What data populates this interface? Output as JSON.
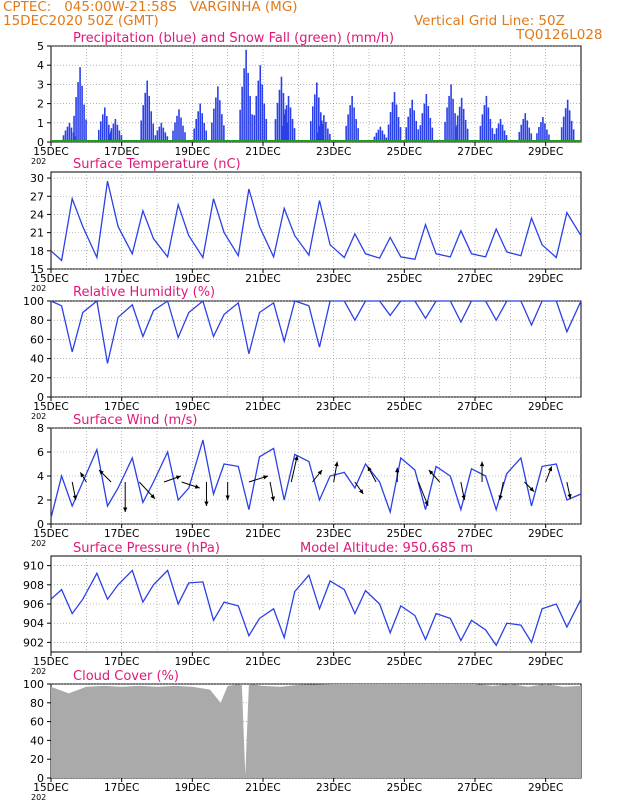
{
  "header": {
    "line1": "CPTEC:   045:00W-21:58S   VARGINHA (MG)",
    "line2": "15DEC2020 50Z (GMT)",
    "grid_note": "Vertical Grid Line: 50Z",
    "code": "TQ0126L028"
  },
  "colors": {
    "header": "#e07a1a",
    "title": "#e0187a",
    "series": "#2b40e8",
    "snow": "#1aa01a",
    "arrows": "#000000",
    "cloud": "#aaaaaa",
    "grid": "#888888"
  },
  "x_tick_labels": [
    "15DEC",
    "17DEC",
    "19DEC",
    "21DEC",
    "23DEC",
    "25DEC",
    "27DEC",
    "29DEC"
  ],
  "year_fragment": "202",
  "chart_data": [
    {
      "id": "precip",
      "type": "bar",
      "title": "Precipitation (blue) and Snow Fall (green) (mm/h)",
      "ylim": [
        0,
        5
      ],
      "y_ticks": [
        0,
        1,
        2,
        3,
        4,
        5
      ],
      "x_range_days": [
        15,
        30
      ],
      "x": [
        15.5,
        15.8,
        16.5,
        16.8,
        17.7,
        18.1,
        18.6,
        19.2,
        19.7,
        20.5,
        20.9,
        21.5,
        21.7,
        22.5,
        22.7,
        23.5,
        24.3,
        24.7,
        25.2,
        25.6,
        26.3,
        26.6,
        27.3,
        27.7,
        28.4,
        28.9,
        29.6
      ],
      "values": [
        1.0,
        3.9,
        1.8,
        1.2,
        3.2,
        1.0,
        1.7,
        2.0,
        2.9,
        4.8,
        4.0,
        3.4,
        2.4,
        3.1,
        1.4,
        2.4,
        0.8,
        2.6,
        2.2,
        2.5,
        3.0,
        2.3,
        2.4,
        1.2,
        1.5,
        1.3,
        2.2
      ],
      "snow": [
        0,
        0,
        0,
        0,
        0,
        0,
        0,
        0,
        0,
        0,
        0,
        0,
        0,
        0,
        0,
        0,
        0,
        0,
        0,
        0,
        0,
        0,
        0,
        0,
        0,
        0,
        0
      ]
    },
    {
      "id": "temp",
      "type": "line",
      "title": "Surface Temperature (nC)",
      "ylim": [
        15,
        31
      ],
      "y_ticks": [
        15,
        18,
        21,
        24,
        27,
        30
      ],
      "x": [
        15.0,
        15.3,
        15.6,
        15.9,
        16.3,
        16.6,
        16.9,
        17.3,
        17.6,
        17.9,
        18.3,
        18.6,
        18.9,
        19.3,
        19.6,
        19.9,
        20.3,
        20.6,
        20.9,
        21.3,
        21.6,
        21.9,
        22.3,
        22.6,
        22.9,
        23.3,
        23.6,
        23.9,
        24.3,
        24.6,
        24.9,
        25.3,
        25.6,
        25.9,
        26.3,
        26.6,
        26.9,
        27.3,
        27.6,
        27.9,
        28.3,
        28.6,
        28.9,
        29.3,
        29.6,
        30.0
      ],
      "values": [
        18.0,
        16.4,
        26.6,
        22.0,
        16.9,
        29.5,
        22.0,
        17.5,
        24.6,
        20.0,
        17.0,
        25.6,
        20.5,
        16.9,
        26.6,
        21.0,
        17.2,
        28.2,
        22.0,
        17.0,
        25.0,
        20.5,
        17.3,
        26.3,
        19.0,
        16.9,
        20.8,
        17.5,
        16.8,
        20.2,
        17.0,
        16.6,
        22.3,
        17.5,
        17.0,
        21.3,
        17.5,
        17.0,
        21.6,
        17.8,
        17.2,
        23.4,
        19.0,
        16.9,
        24.3,
        20.5
      ]
    },
    {
      "id": "rh",
      "type": "line",
      "title": "Relative Humidity (%)",
      "ylim": [
        0,
        100
      ],
      "y_ticks": [
        0,
        20,
        40,
        60,
        80,
        100
      ],
      "x": [
        15.0,
        15.3,
        15.6,
        15.9,
        16.3,
        16.6,
        16.9,
        17.3,
        17.6,
        17.9,
        18.3,
        18.6,
        18.9,
        19.3,
        19.6,
        19.9,
        20.3,
        20.6,
        20.9,
        21.3,
        21.6,
        21.9,
        22.3,
        22.6,
        22.9,
        23.3,
        23.6,
        23.9,
        24.3,
        24.6,
        24.9,
        25.3,
        25.6,
        25.9,
        26.3,
        26.6,
        26.9,
        27.3,
        27.6,
        27.9,
        28.3,
        28.6,
        28.9,
        29.3,
        29.6,
        30.0
      ],
      "values": [
        100,
        95,
        47,
        88,
        100,
        35,
        83,
        96,
        63,
        90,
        100,
        62,
        88,
        100,
        63,
        86,
        98,
        45,
        88,
        98,
        58,
        100,
        95,
        52,
        100,
        100,
        80,
        100,
        100,
        85,
        100,
        100,
        82,
        100,
        100,
        78,
        100,
        100,
        80,
        100,
        100,
        75,
        100,
        100,
        68,
        100
      ]
    },
    {
      "id": "wind",
      "type": "line",
      "title": "Surface Wind (m/s)",
      "ylim": [
        0,
        8
      ],
      "y_ticks": [
        0,
        2,
        4,
        6,
        8
      ],
      "x": [
        15.0,
        15.3,
        15.6,
        15.9,
        16.3,
        16.6,
        16.9,
        17.3,
        17.6,
        17.9,
        18.3,
        18.6,
        18.9,
        19.3,
        19.6,
        19.9,
        20.3,
        20.6,
        20.9,
        21.3,
        21.6,
        21.9,
        22.3,
        22.6,
        22.9,
        23.3,
        23.6,
        23.9,
        24.3,
        24.6,
        24.9,
        25.3,
        25.6,
        25.9,
        26.3,
        26.6,
        26.9,
        27.3,
        27.6,
        27.9,
        28.3,
        28.6,
        28.9,
        29.3,
        29.6,
        30.0
      ],
      "values": [
        0.5,
        4.0,
        1.5,
        3.5,
        6.2,
        1.5,
        3.0,
        5.5,
        1.8,
        3.5,
        6.0,
        2.0,
        3.0,
        7.0,
        2.5,
        5.0,
        4.8,
        1.2,
        5.6,
        6.3,
        2.0,
        5.8,
        5.2,
        2.0,
        4.0,
        4.3,
        3.0,
        5.0,
        3.5,
        1.0,
        5.5,
        4.5,
        1.2,
        4.8,
        4.0,
        1.2,
        4.6,
        4.0,
        1.2,
        4.2,
        5.5,
        1.5,
        4.8,
        5.0,
        2.0,
        2.5
      ],
      "arrows_x": [
        15.6,
        16.0,
        16.7,
        17.1,
        17.5,
        18.2,
        18.7,
        19.4,
        20.0,
        20.6,
        21.2,
        21.8,
        22.4,
        23.0,
        23.6,
        24.2,
        24.8,
        25.4,
        26.0,
        26.6,
        27.2,
        27.8,
        28.4,
        29.0,
        29.6
      ],
      "arrows_u": [
        0.3,
        -0.5,
        -1.0,
        0.0,
        1.3,
        1.4,
        1.5,
        0.0,
        0.0,
        1.6,
        0.3,
        0.5,
        0.8,
        0.3,
        0.7,
        -0.7,
        0.0,
        0.8,
        -0.9,
        0.3,
        0.0,
        -0.3,
        0.8,
        0.5,
        0.3
      ],
      "arrows_v": [
        -1.5,
        0.8,
        1.0,
        -2.5,
        -1.4,
        0.5,
        -0.5,
        -2.0,
        -1.5,
        0.5,
        -1.6,
        2.2,
        1.0,
        1.7,
        -1.0,
        1.3,
        1.2,
        -2.0,
        1.0,
        -1.5,
        1.7,
        -1.5,
        -0.8,
        1.3,
        -1.4
      ]
    },
    {
      "id": "press",
      "type": "line",
      "title": "Surface Pressure (hPa)",
      "extra_title": "Model Altitude: 950.685 m",
      "ylim": [
        901,
        911
      ],
      "y_ticks": [
        902,
        904,
        906,
        908,
        910
      ],
      "x": [
        15.0,
        15.3,
        15.6,
        15.9,
        16.3,
        16.6,
        16.9,
        17.3,
        17.6,
        17.9,
        18.3,
        18.6,
        18.9,
        19.3,
        19.6,
        19.9,
        20.3,
        20.6,
        20.9,
        21.3,
        21.6,
        21.9,
        22.3,
        22.6,
        22.9,
        23.3,
        23.6,
        23.9,
        24.3,
        24.6,
        24.9,
        25.3,
        25.6,
        25.9,
        26.3,
        26.6,
        26.9,
        27.3,
        27.6,
        27.9,
        28.3,
        28.6,
        28.9,
        29.3,
        29.6,
        30.0
      ],
      "values": [
        906.5,
        907.5,
        905.0,
        906.5,
        909.2,
        906.5,
        908.0,
        909.5,
        906.2,
        908.0,
        909.5,
        906.0,
        908.2,
        908.3,
        904.3,
        906.2,
        905.8,
        902.7,
        904.5,
        905.5,
        902.5,
        907.3,
        909.0,
        905.5,
        908.4,
        907.5,
        905.0,
        907.4,
        906.0,
        903.0,
        905.8,
        904.8,
        902.3,
        905.0,
        904.5,
        902.2,
        904.3,
        903.3,
        901.7,
        904.0,
        903.8,
        902.0,
        905.5,
        906.0,
        903.6,
        906.5
      ]
    },
    {
      "id": "cloud",
      "type": "area",
      "title": "Cloud Cover (%)",
      "ylim": [
        0,
        100
      ],
      "y_ticks": [
        0,
        20,
        40,
        60,
        80,
        100
      ],
      "x": [
        15.0,
        15.5,
        16.0,
        16.5,
        17.0,
        17.5,
        18.0,
        18.5,
        19.0,
        19.5,
        19.8,
        20.0,
        20.4,
        20.5,
        20.6,
        21.0,
        21.5,
        22.0,
        23.0,
        24.0,
        25.0,
        26.0,
        27.0,
        27.5,
        28.0,
        28.5,
        29.0,
        29.5,
        30.0
      ],
      "values": [
        97,
        90,
        97,
        98,
        97,
        98,
        97,
        98,
        97,
        94,
        80,
        98,
        100,
        3,
        100,
        98,
        97,
        99,
        100,
        100,
        100,
        100,
        100,
        98,
        100,
        97,
        100,
        97,
        98
      ]
    }
  ]
}
